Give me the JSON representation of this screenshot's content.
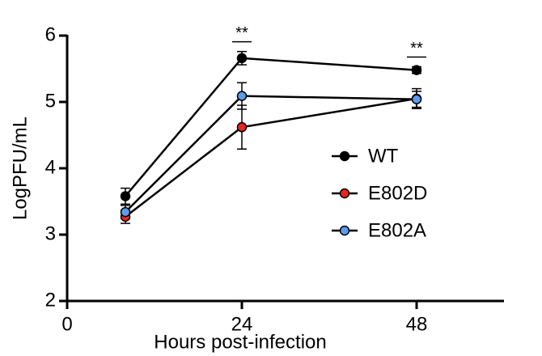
{
  "chart_data": {
    "type": "line",
    "x": [
      8,
      24,
      48
    ],
    "series": [
      {
        "name": "WT",
        "color": "#000000",
        "values": [
          3.58,
          5.66,
          5.48
        ],
        "errors": [
          0.12,
          0.1,
          0.05
        ]
      },
      {
        "name": "E802D",
        "color": "#e8261c",
        "values": [
          3.27,
          4.62,
          5.05
        ],
        "errors": [
          0.1,
          0.33,
          0.15
        ]
      },
      {
        "name": "E802A",
        "color": "#5b9bef",
        "values": [
          3.34,
          5.09,
          5.04
        ],
        "errors": [
          0.1,
          0.2,
          0.12
        ]
      }
    ],
    "xlabel": "Hours post-infection",
    "ylabel": "LogPFU/mL",
    "xlim": [
      0,
      60
    ],
    "ylim": [
      2,
      6
    ],
    "xticks": [
      0,
      24,
      48
    ],
    "yticks": [
      2,
      3,
      4,
      5,
      6
    ],
    "annotations": [
      {
        "text": "**"
      },
      {
        "text": "**"
      }
    ]
  }
}
